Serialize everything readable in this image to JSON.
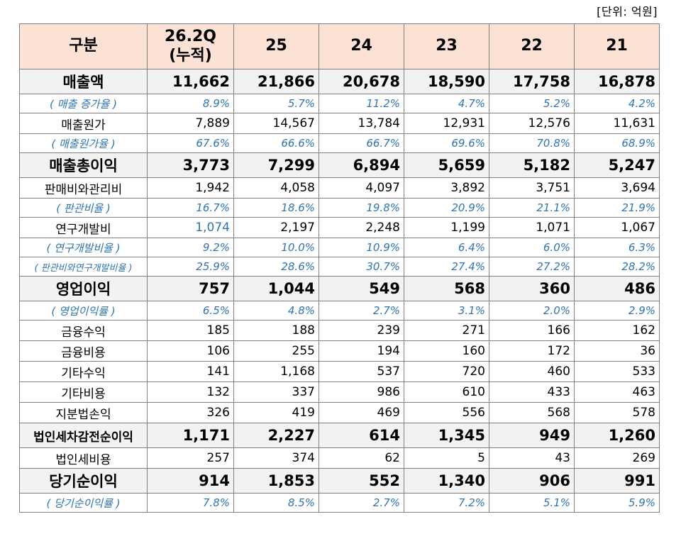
{
  "unit_label": "[단위: 억원]",
  "header": {
    "label": "구분",
    "periods": [
      "26.2Q",
      "25",
      "24",
      "23",
      "22",
      "21"
    ],
    "period0_sub": "(누적)"
  },
  "rows": [
    {
      "type": "major",
      "label": "매출액",
      "values": [
        "11,662",
        "21,866",
        "20,678",
        "18,590",
        "17,758",
        "16,878"
      ]
    },
    {
      "type": "ratio",
      "label": "( 매출 증가율 )",
      "values": [
        "8.9%",
        "5.7%",
        "11.2%",
        "4.7%",
        "5.2%",
        "4.2%"
      ]
    },
    {
      "type": "normal",
      "label": "매출원가",
      "values": [
        "7,889",
        "14,567",
        "13,784",
        "12,931",
        "12,576",
        "11,631"
      ]
    },
    {
      "type": "ratio",
      "label": "( 매출원가율 )",
      "values": [
        "67.6%",
        "66.6%",
        "66.7%",
        "69.6%",
        "70.8%",
        "68.9%"
      ]
    },
    {
      "type": "major",
      "label": "매출총이익",
      "values": [
        "3,773",
        "7,299",
        "6,894",
        "5,659",
        "5,182",
        "5,247"
      ]
    },
    {
      "type": "normal",
      "label": "판매비와관리비",
      "values": [
        "1,942",
        "4,058",
        "4,097",
        "3,892",
        "3,751",
        "3,694"
      ]
    },
    {
      "type": "ratio",
      "label": "( 판관비율 )",
      "values": [
        "16.7%",
        "18.6%",
        "19.8%",
        "20.9%",
        "21.1%",
        "21.9%"
      ]
    },
    {
      "type": "normal",
      "label": "연구개발비",
      "values": [
        "1,074",
        "2,197",
        "2,248",
        "1,199",
        "1,071",
        "1,067"
      ],
      "first_blue": true
    },
    {
      "type": "ratio",
      "label": "( 연구개발비율 )",
      "values": [
        "9.2%",
        "10.0%",
        "10.9%",
        "6.4%",
        "6.0%",
        "6.3%"
      ]
    },
    {
      "type": "ratio",
      "label": "( 판관비와연구개발비율 )",
      "values": [
        "25.9%",
        "28.6%",
        "30.7%",
        "27.4%",
        "27.2%",
        "28.2%"
      ],
      "small": true
    },
    {
      "type": "major",
      "label": "영업이익",
      "values": [
        "757",
        "1,044",
        "549",
        "568",
        "360",
        "486"
      ]
    },
    {
      "type": "ratio",
      "label": "( 영업이익률 )",
      "values": [
        "6.5%",
        "4.8%",
        "2.7%",
        "3.1%",
        "2.0%",
        "2.9%"
      ]
    },
    {
      "type": "normal",
      "label": "금융수익",
      "values": [
        "185",
        "188",
        "239",
        "271",
        "166",
        "162"
      ]
    },
    {
      "type": "normal",
      "label": "금융비용",
      "values": [
        "106",
        "255",
        "194",
        "160",
        "172",
        "36"
      ]
    },
    {
      "type": "normal",
      "label": "기타수익",
      "values": [
        "141",
        "1,168",
        "537",
        "720",
        "460",
        "533"
      ]
    },
    {
      "type": "normal",
      "label": "기타비용",
      "values": [
        "132",
        "337",
        "986",
        "610",
        "433",
        "463"
      ]
    },
    {
      "type": "normal",
      "label": "지분법손익",
      "values": [
        "326",
        "419",
        "469",
        "556",
        "568",
        "578"
      ]
    },
    {
      "type": "major",
      "label": "법인세차감전순이익",
      "values": [
        "1,171",
        "2,227",
        "614",
        "1,345",
        "949",
        "1,260"
      ],
      "small_label": true
    },
    {
      "type": "normal",
      "label": "법인세비용",
      "values": [
        "257",
        "374",
        "62",
        "5",
        "43",
        "269"
      ]
    },
    {
      "type": "major",
      "label": "당기순이익",
      "values": [
        "914",
        "1,853",
        "552",
        "1,340",
        "906",
        "991"
      ]
    },
    {
      "type": "ratio",
      "label": "( 당기순이익률 )",
      "values": [
        "7.8%",
        "8.5%",
        "2.7%",
        "7.2%",
        "5.1%",
        "5.9%"
      ]
    }
  ]
}
